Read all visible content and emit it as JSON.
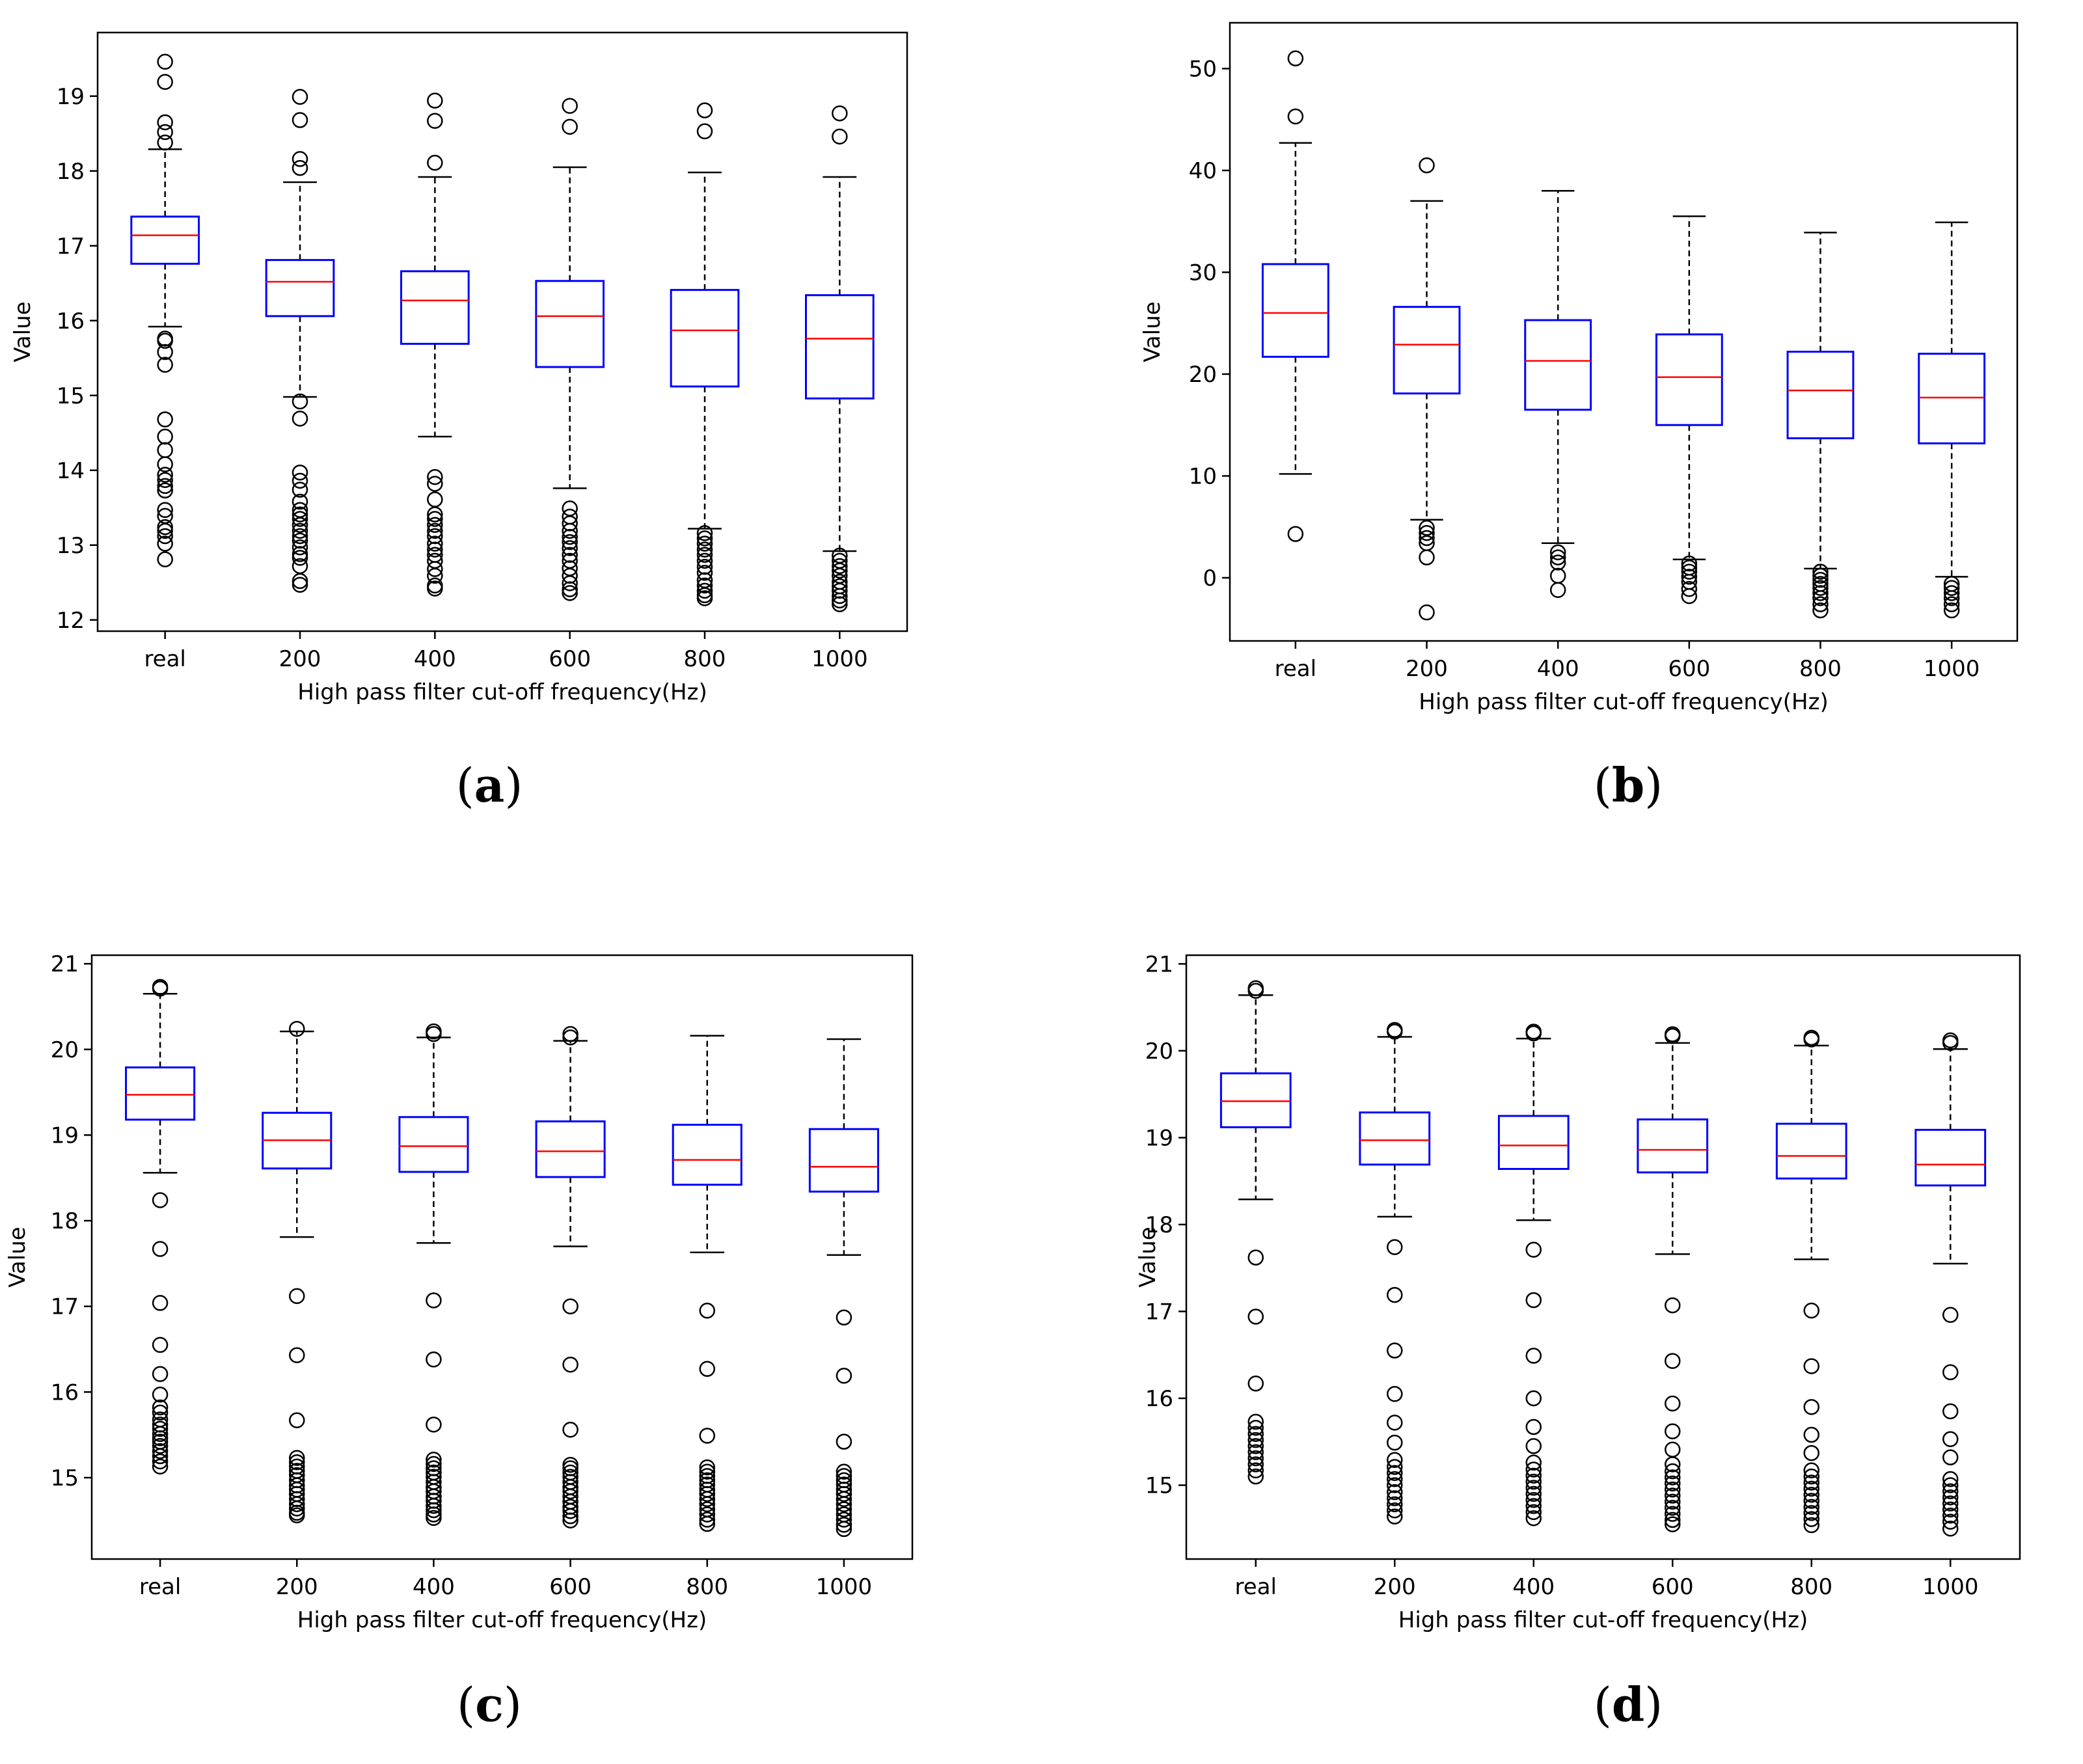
{
  "chart_data": [
    {
      "type": "box",
      "panel": "a",
      "panel_label": {
        "open": "(",
        "letter": "a",
        "close": ")"
      },
      "xlabel": "High pass filter cut-off frequency(Hz)",
      "ylabel": "Value",
      "ylim": [
        11.85,
        19.85
      ],
      "yticks": [
        12,
        13,
        14,
        15,
        16,
        17,
        18,
        19
      ],
      "categories": [
        "real",
        "200",
        "400",
        "600",
        "800",
        "1000"
      ],
      "colors": {
        "box": "#0000ff",
        "median": "#ff0000",
        "whisker": "#000000"
      },
      "boxes": [
        {
          "q1": 16.76,
          "median": 17.14,
          "q3": 17.39,
          "whislo": 15.92,
          "whishi": 18.29,
          "fliers": [
            19.46,
            19.19,
            18.65,
            18.52,
            18.38,
            15.76,
            15.73,
            15.58,
            15.41,
            14.68,
            14.45,
            14.27,
            14.08,
            13.94,
            13.87,
            13.79,
            13.73,
            13.47,
            13.39,
            13.24,
            13.19,
            13.12,
            13.02,
            12.81
          ]
        },
        {
          "q1": 16.06,
          "median": 16.52,
          "q3": 16.81,
          "whislo": 14.98,
          "whishi": 17.85,
          "fliers": [
            18.99,
            18.68,
            18.16,
            18.04,
            14.92,
            14.69,
            13.97,
            13.86,
            13.74,
            13.58,
            13.47,
            13.41,
            13.35,
            13.27,
            13.19,
            13.12,
            13.06,
            12.97,
            12.88,
            12.83,
            12.72,
            12.52,
            12.47
          ]
        },
        {
          "q1": 15.69,
          "median": 16.27,
          "q3": 16.66,
          "whislo": 14.45,
          "whishi": 17.92,
          "fliers": [
            18.94,
            18.67,
            18.11,
            13.91,
            13.82,
            13.61,
            13.41,
            13.35,
            13.27,
            13.19,
            13.12,
            13.02,
            12.94,
            12.87,
            12.79,
            12.68,
            12.59,
            12.46,
            12.42
          ]
        },
        {
          "q1": 15.38,
          "median": 16.06,
          "q3": 16.53,
          "whislo": 13.76,
          "whishi": 18.05,
          "fliers": [
            18.87,
            18.59,
            13.49,
            13.38,
            13.29,
            13.19,
            13.11,
            13.04,
            12.96,
            12.87,
            12.79,
            12.69,
            12.59,
            12.49,
            12.41,
            12.36
          ]
        },
        {
          "q1": 15.12,
          "median": 15.87,
          "q3": 16.41,
          "whislo": 13.22,
          "whishi": 17.98,
          "fliers": [
            18.81,
            18.53,
            13.16,
            13.09,
            13.02,
            12.94,
            12.87,
            12.79,
            12.71,
            12.63,
            12.53,
            12.46,
            12.39,
            12.33,
            12.29
          ]
        },
        {
          "q1": 14.96,
          "median": 15.76,
          "q3": 16.34,
          "whislo": 12.92,
          "whishi": 17.92,
          "fliers": [
            18.77,
            18.46,
            12.86,
            12.79,
            12.72,
            12.66,
            12.59,
            12.51,
            12.45,
            12.39,
            12.32,
            12.26,
            12.21
          ]
        }
      ]
    },
    {
      "type": "box",
      "panel": "b",
      "panel_label": {
        "open": "(",
        "letter": "b",
        "close": ")"
      },
      "xlabel": "High pass filter cut-off frequency(Hz)",
      "ylabel": "Value",
      "ylim": [
        -6.2,
        54.5
      ],
      "yticks": [
        0,
        10,
        20,
        30,
        40,
        50
      ],
      "categories": [
        "real",
        "200",
        "400",
        "600",
        "800",
        "1000"
      ],
      "colors": {
        "box": "#0000ff",
        "median": "#ff0000",
        "whisker": "#000000"
      },
      "boxes": [
        {
          "q1": 21.7,
          "median": 26.0,
          "q3": 30.8,
          "whislo": 10.2,
          "whishi": 42.7,
          "fliers": [
            51.0,
            45.3,
            4.3
          ]
        },
        {
          "q1": 18.1,
          "median": 22.9,
          "q3": 26.6,
          "whislo": 5.7,
          "whishi": 37.0,
          "fliers": [
            40.5,
            4.9,
            4.4,
            3.9,
            3.4,
            2.0,
            -3.4
          ]
        },
        {
          "q1": 16.5,
          "median": 21.3,
          "q3": 25.3,
          "whislo": 3.4,
          "whishi": 38.0,
          "fliers": [
            2.5,
            2.0,
            1.5,
            0.2,
            -1.2
          ]
        },
        {
          "q1": 15.0,
          "median": 19.7,
          "q3": 23.9,
          "whislo": 1.8,
          "whishi": 35.5,
          "fliers": [
            1.4,
            1.0,
            0.6,
            0.1,
            -0.4,
            -1.1,
            -1.8
          ]
        },
        {
          "q1": 13.7,
          "median": 18.4,
          "q3": 22.2,
          "whislo": 0.9,
          "whishi": 33.9,
          "fliers": [
            0.6,
            0.2,
            -0.2,
            -0.6,
            -1.0,
            -1.5,
            -2.0,
            -2.6,
            -3.2
          ]
        },
        {
          "q1": 13.2,
          "median": 17.7,
          "q3": 22.0,
          "whislo": 0.1,
          "whishi": 34.9,
          "fliers": [
            -0.6,
            -1.0,
            -1.5,
            -2.0,
            -2.6,
            -3.2
          ]
        }
      ]
    },
    {
      "type": "box",
      "panel": "c",
      "panel_label": {
        "open": "(",
        "letter": "c",
        "close": ")"
      },
      "xlabel": "High pass filter cut-off frequency(Hz)",
      "ylabel": "Value",
      "ylim": [
        14.05,
        21.1
      ],
      "yticks": [
        15,
        16,
        17,
        18,
        19,
        20,
        21
      ],
      "categories": [
        "real",
        "200",
        "400",
        "600",
        "800",
        "1000"
      ],
      "colors": {
        "box": "#0000ff",
        "median": "#ff0000",
        "whisker": "#000000"
      },
      "boxes": [
        {
          "q1": 19.18,
          "median": 19.47,
          "q3": 19.79,
          "whislo": 18.56,
          "whishi": 20.65,
          "fliers": [
            20.73,
            20.71,
            18.24,
            17.67,
            17.04,
            16.55,
            16.21,
            15.97,
            15.82,
            15.76,
            15.68,
            15.62,
            15.57,
            15.51,
            15.46,
            15.42,
            15.37,
            15.31,
            15.25,
            15.19,
            15.13
          ]
        },
        {
          "q1": 18.61,
          "median": 18.94,
          "q3": 19.26,
          "whislo": 17.81,
          "whishi": 20.21,
          "fliers": [
            20.24,
            17.12,
            16.43,
            15.67,
            15.23,
            15.18,
            15.13,
            15.08,
            15.03,
            14.97,
            14.91,
            14.86,
            14.81,
            14.75,
            14.69,
            14.64,
            14.59,
            14.56
          ]
        },
        {
          "q1": 18.57,
          "median": 18.87,
          "q3": 19.21,
          "whislo": 17.74,
          "whishi": 20.14,
          "fliers": [
            20.21,
            20.18,
            17.07,
            16.38,
            15.62,
            15.21,
            15.16,
            15.11,
            15.06,
            15.01,
            14.95,
            14.89,
            14.84,
            14.78,
            14.73,
            14.67,
            14.62,
            14.57,
            14.53
          ]
        },
        {
          "q1": 18.51,
          "median": 18.81,
          "q3": 19.16,
          "whislo": 17.7,
          "whishi": 20.1,
          "fliers": [
            20.18,
            20.14,
            17.0,
            16.32,
            15.56,
            15.15,
            15.11,
            15.06,
            15.01,
            14.95,
            14.89,
            14.84,
            14.78,
            14.72,
            14.66,
            14.61,
            14.55,
            14.5
          ]
        },
        {
          "q1": 18.42,
          "median": 18.71,
          "q3": 19.12,
          "whislo": 17.63,
          "whishi": 20.16,
          "fliers": [
            16.95,
            16.27,
            15.49,
            15.12,
            15.07,
            15.02,
            14.97,
            14.92,
            14.86,
            14.81,
            14.75,
            14.69,
            14.63,
            14.57,
            14.51,
            14.46
          ]
        },
        {
          "q1": 18.34,
          "median": 18.63,
          "q3": 19.07,
          "whislo": 17.6,
          "whishi": 20.12,
          "fliers": [
            16.87,
            16.19,
            15.42,
            15.07,
            15.02,
            14.97,
            14.92,
            14.86,
            14.81,
            14.75,
            14.69,
            14.63,
            14.57,
            14.51,
            14.45,
            14.4
          ]
        }
      ]
    },
    {
      "type": "box",
      "panel": "d",
      "panel_label": {
        "open": "(",
        "letter": "d",
        "close": ")"
      },
      "xlabel": "High pass filter cut-off frequency(Hz)",
      "ylabel": "Value",
      "ylim": [
        14.15,
        21.1
      ],
      "yticks": [
        15,
        16,
        17,
        18,
        19,
        20,
        21
      ],
      "categories": [
        "real",
        "200",
        "400",
        "600",
        "800",
        "1000"
      ],
      "colors": {
        "box": "#0000ff",
        "median": "#ff0000",
        "whisker": "#000000"
      },
      "boxes": [
        {
          "q1": 19.12,
          "median": 19.42,
          "q3": 19.74,
          "whislo": 18.29,
          "whishi": 20.64,
          "fliers": [
            20.72,
            20.69,
            17.62,
            16.94,
            16.17,
            15.73,
            15.66,
            15.59,
            15.52,
            15.45,
            15.38,
            15.31,
            15.24,
            15.17,
            15.1
          ]
        },
        {
          "q1": 18.69,
          "median": 18.97,
          "q3": 19.29,
          "whislo": 18.09,
          "whishi": 20.16,
          "fliers": [
            20.24,
            20.22,
            17.74,
            17.19,
            16.55,
            16.05,
            15.72,
            15.49,
            15.29,
            15.21,
            15.14,
            15.07,
            15.0,
            14.92,
            14.85,
            14.78,
            14.71,
            14.64
          ]
        },
        {
          "q1": 18.64,
          "median": 18.91,
          "q3": 19.25,
          "whislo": 18.05,
          "whishi": 20.14,
          "fliers": [
            20.22,
            20.2,
            17.71,
            17.13,
            16.49,
            16.0,
            15.67,
            15.45,
            15.26,
            15.18,
            15.11,
            15.04,
            14.97,
            14.9,
            14.83,
            14.76,
            14.69,
            14.62
          ]
        },
        {
          "q1": 18.6,
          "median": 18.86,
          "q3": 19.21,
          "whislo": 17.66,
          "whishi": 20.09,
          "fliers": [
            20.19,
            20.17,
            17.07,
            16.43,
            15.94,
            15.62,
            15.41,
            15.24,
            15.16,
            15.09,
            15.02,
            14.95,
            14.88,
            14.81,
            14.74,
            14.67,
            14.6,
            14.55
          ]
        },
        {
          "q1": 18.53,
          "median": 18.79,
          "q3": 19.16,
          "whislo": 17.6,
          "whishi": 20.06,
          "fliers": [
            20.15,
            20.13,
            17.01,
            16.37,
            15.9,
            15.58,
            15.37,
            15.17,
            15.1,
            15.03,
            14.96,
            14.89,
            14.82,
            14.75,
            14.68,
            14.61,
            14.54
          ]
        },
        {
          "q1": 18.45,
          "median": 18.69,
          "q3": 19.09,
          "whislo": 17.55,
          "whishi": 20.02,
          "fliers": [
            20.12,
            20.09,
            16.96,
            16.3,
            15.85,
            15.53,
            15.32,
            15.07,
            15.0,
            14.93,
            14.86,
            14.79,
            14.72,
            14.65,
            14.58,
            14.5
          ]
        }
      ]
    }
  ]
}
